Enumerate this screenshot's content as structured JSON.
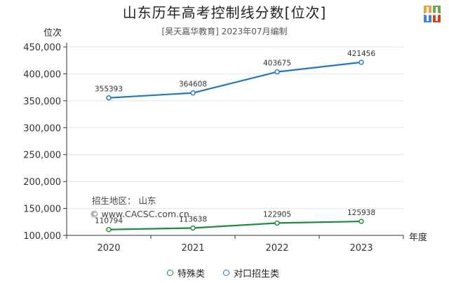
{
  "title": "山东历年高考控制线分数[位次]",
  "subtitle": "[昊天嘉华教育] 2023年07月编制",
  "ylabel": "位次",
  "xlabel": "年度",
  "notes": {
    "region": "招生地区：  山东",
    "watermark": "© www.CACSC.com.cn"
  },
  "legend": {
    "s1": "特殊类",
    "s2": "对口招生类"
  },
  "colors": {
    "special": "#1a8a3c",
    "vocational": "#1f78c1",
    "axis": "#333333",
    "grid": "#e4e4e4"
  },
  "chart_data": {
    "type": "line",
    "categories": [
      "2020",
      "2021",
      "2022",
      "2023"
    ],
    "series": [
      {
        "name": "特殊类",
        "values": [
          110794,
          113638,
          122905,
          125938
        ],
        "labels": [
          "110794",
          "113638",
          "122905",
          "125938"
        ]
      },
      {
        "name": "对口招生类",
        "values": [
          355393,
          364608,
          403675,
          421456
        ],
        "labels": [
          "355393",
          "364608",
          "403675",
          "421456"
        ]
      }
    ],
    "ylim": [
      100000,
      450000
    ],
    "yticks": [
      100000,
      150000,
      200000,
      250000,
      300000,
      350000,
      400000,
      450000
    ],
    "ytick_labels": [
      "100,000",
      "150,000",
      "200,000",
      "250,000",
      "300,000",
      "350,000",
      "400,000",
      "450,000"
    ],
    "grid": true,
    "legend_position": "bottom-center"
  }
}
